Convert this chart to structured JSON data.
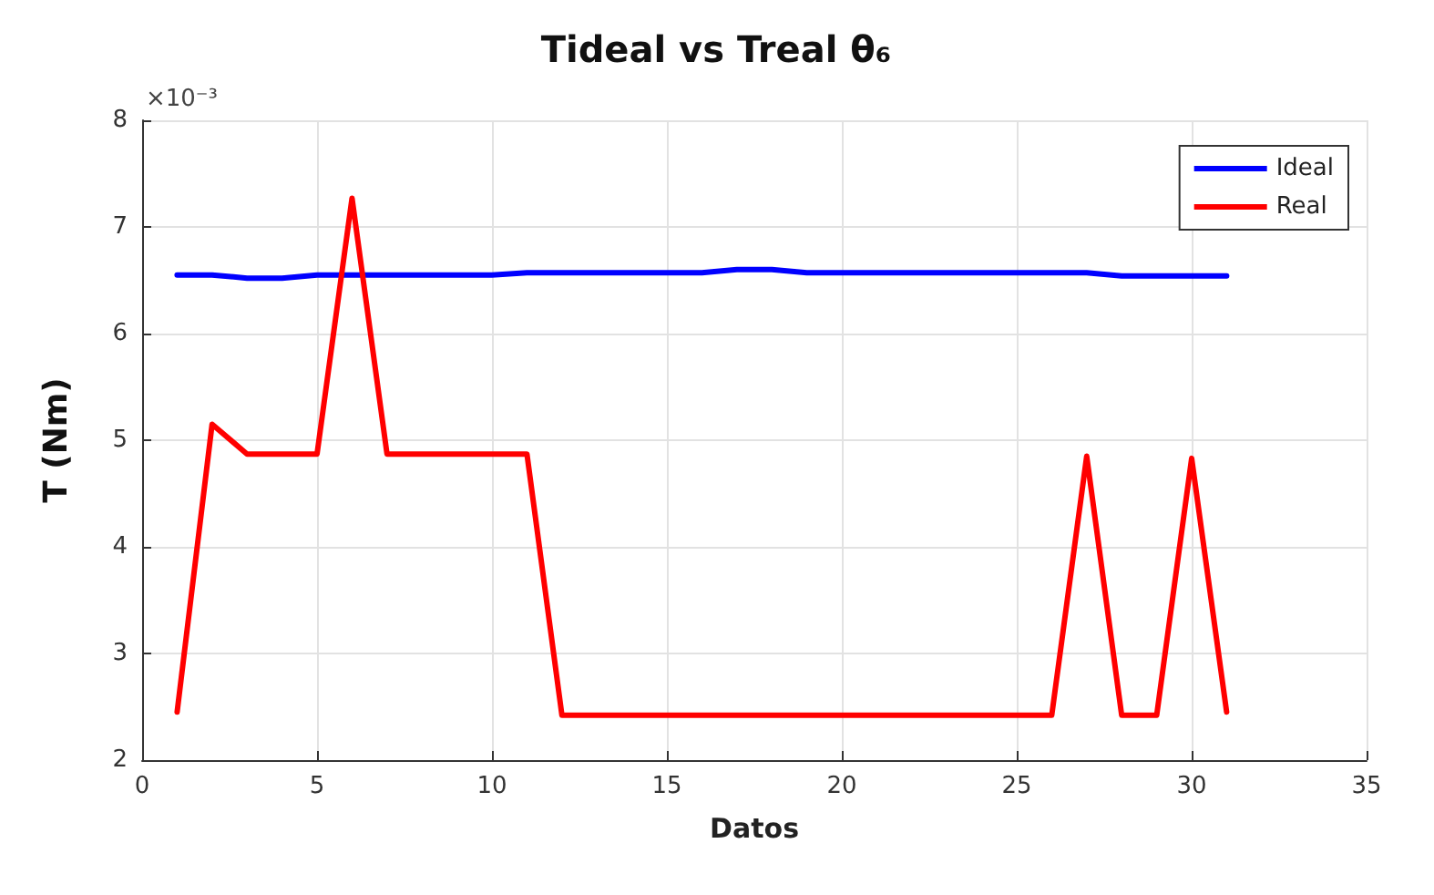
{
  "chart_data": {
    "type": "line",
    "title": "Tideal vs Treal θ₆",
    "xlabel": "Datos",
    "ylabel": "T (Nm)",
    "annotations": [
      "×10⁻³"
    ],
    "x": [
      1,
      2,
      3,
      4,
      5,
      6,
      7,
      8,
      9,
      10,
      11,
      12,
      13,
      14,
      15,
      16,
      17,
      18,
      19,
      20,
      21,
      22,
      23,
      24,
      25,
      26,
      27,
      28,
      29,
      30,
      31
    ],
    "series": [
      {
        "name": "Ideal",
        "color": "#0000ff",
        "values": [
          6.55,
          6.55,
          6.52,
          6.52,
          6.55,
          6.55,
          6.55,
          6.55,
          6.55,
          6.55,
          6.57,
          6.57,
          6.57,
          6.57,
          6.57,
          6.57,
          6.6,
          6.6,
          6.57,
          6.57,
          6.57,
          6.57,
          6.57,
          6.57,
          6.57,
          6.57,
          6.57,
          6.54,
          6.54,
          6.54,
          6.54
        ]
      },
      {
        "name": "Real",
        "color": "#ff0000",
        "values": [
          2.45,
          5.15,
          4.87,
          4.87,
          4.87,
          7.27,
          4.87,
          4.87,
          4.87,
          4.87,
          4.87,
          2.42,
          2.42,
          2.42,
          2.42,
          2.42,
          2.42,
          2.42,
          2.42,
          2.42,
          2.42,
          2.42,
          2.42,
          2.42,
          2.42,
          2.42,
          4.85,
          2.42,
          2.42,
          4.83,
          2.45
        ]
      }
    ],
    "xlim": [
      0,
      35
    ],
    "xticks": [
      0,
      5,
      10,
      15,
      20,
      25,
      30,
      35
    ],
    "ylim": [
      2,
      8
    ],
    "yticks": [
      2,
      3,
      4,
      5,
      6,
      7,
      8
    ],
    "grid": true,
    "legend": "top right",
    "marker": "none",
    "line_style": "solid"
  }
}
